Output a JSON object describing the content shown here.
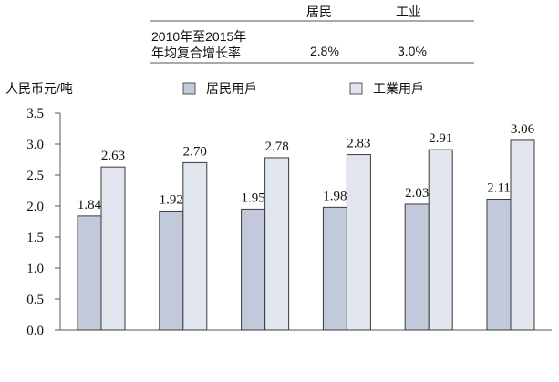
{
  "table": {
    "columns": [
      "居民",
      "工业"
    ],
    "row_label_line1": "2010年至2015年",
    "row_label_line2": "年均复合增长率",
    "values": [
      "2.8%",
      "3.0%"
    ]
  },
  "chart_data": {
    "type": "bar",
    "title": "",
    "ylabel": "人民币元/吨",
    "xlabel": "",
    "categories": [
      "",
      "",
      "",
      "",
      "",
      ""
    ],
    "ylim": [
      0,
      3.5
    ],
    "yticks": [
      "0.0",
      "0.5",
      "1.0",
      "1.5",
      "2.0",
      "2.5",
      "3.0",
      "3.5"
    ],
    "legend_position": "top",
    "series": [
      {
        "name": "居民用戶",
        "color": "#c2c9da",
        "values": [
          1.84,
          1.92,
          1.95,
          1.98,
          2.03,
          2.11
        ],
        "labels": [
          "1.84",
          "1.92",
          "1.95",
          "1.98",
          "2.03",
          "2.11"
        ]
      },
      {
        "name": "工業用戶",
        "color": "#e1e5ee",
        "values": [
          2.63,
          2.7,
          2.78,
          2.83,
          2.91,
          3.06
        ],
        "labels": [
          "2.63",
          "2.70",
          "2.78",
          "2.83",
          "2.91",
          "3.06"
        ]
      }
    ]
  }
}
